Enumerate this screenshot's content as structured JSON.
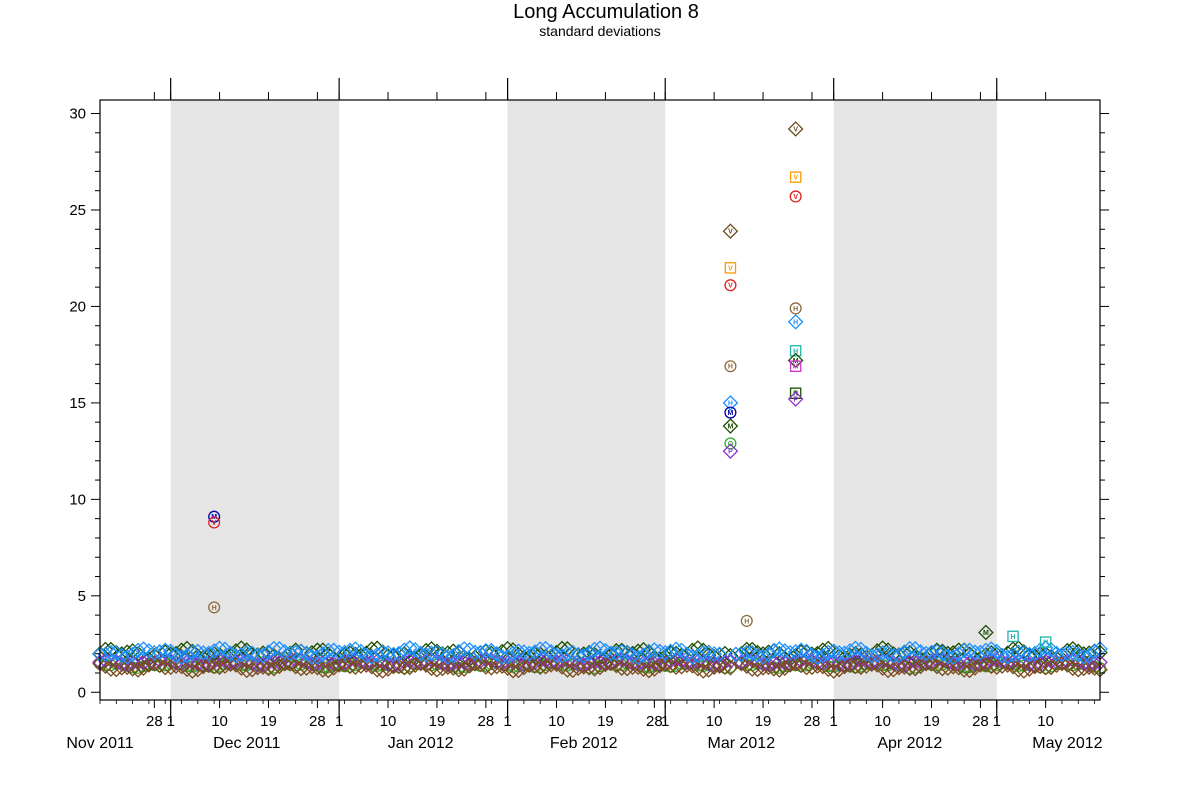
{
  "chart_data": {
    "type": "scatter",
    "title": "Long Accumulation 8",
    "subtitle": "standard deviations",
    "xlabel": "",
    "ylabel": "",
    "x_range": [
      "2011-11-18",
      "2012-05-20"
    ],
    "ylim": [
      -0.4,
      30.7
    ],
    "y_ticks": [
      0,
      5,
      10,
      15,
      20,
      25,
      30
    ],
    "y_minor_step": 1,
    "x_ticks": [
      {
        "date": "2011-11-28",
        "label": "28"
      },
      {
        "date": "2011-12-01",
        "label": "1"
      },
      {
        "date": "2011-12-10",
        "label": "10"
      },
      {
        "date": "2011-12-19",
        "label": "19"
      },
      {
        "date": "2011-12-28",
        "label": "28"
      },
      {
        "date": "2012-01-01",
        "label": "1"
      },
      {
        "date": "2012-01-10",
        "label": "10"
      },
      {
        "date": "2012-01-19",
        "label": "19"
      },
      {
        "date": "2012-01-28",
        "label": "28"
      },
      {
        "date": "2012-02-01",
        "label": "1"
      },
      {
        "date": "2012-02-10",
        "label": "10"
      },
      {
        "date": "2012-02-19",
        "label": "19"
      },
      {
        "date": "2012-02-28",
        "label": "28"
      },
      {
        "date": "2012-03-01",
        "label": "1"
      },
      {
        "date": "2012-03-10",
        "label": "10"
      },
      {
        "date": "2012-03-19",
        "label": "19"
      },
      {
        "date": "2012-03-28",
        "label": "28"
      },
      {
        "date": "2012-04-01",
        "label": "1"
      },
      {
        "date": "2012-04-10",
        "label": "10"
      },
      {
        "date": "2012-04-19",
        "label": "19"
      },
      {
        "date": "2012-04-28",
        "label": "28"
      },
      {
        "date": "2012-05-01",
        "label": "1"
      },
      {
        "date": "2012-05-10",
        "label": "10"
      }
    ],
    "month_labels": [
      {
        "date": "2011-11-18",
        "label": "Nov 2011"
      },
      {
        "date": "2011-12-15",
        "label": "Dec 2011"
      },
      {
        "date": "2012-01-16",
        "label": "Jan 2012"
      },
      {
        "date": "2012-02-15",
        "label": "Feb 2012"
      },
      {
        "date": "2012-03-15",
        "label": "Mar 2012"
      },
      {
        "date": "2012-04-15",
        "label": "Apr 2012"
      },
      {
        "date": "2012-05-14",
        "label": "May 2012"
      }
    ],
    "month_starts": [
      "2011-12-01",
      "2012-01-01",
      "2012-02-01",
      "2012-03-01",
      "2012-04-01",
      "2012-05-01"
    ],
    "shaded_periods": [
      [
        "2011-12-01",
        "2012-01-01"
      ],
      [
        "2012-02-01",
        "2012-03-01"
      ],
      [
        "2012-04-01",
        "2012-05-01"
      ]
    ],
    "grid": false,
    "legend": "none",
    "baseline_series": [
      {
        "marker": "diamond",
        "color": "#1a4d00",
        "level": 2.0,
        "amp": 0.3,
        "segments": [
          [
            "2011-11-18",
            "2012-03-13"
          ],
          [
            "2012-03-15",
            "2012-05-20"
          ]
        ]
      },
      {
        "marker": "circle",
        "color": "#33aa33",
        "level": 1.4,
        "amp": 0.15,
        "segments": [
          [
            "2011-11-18",
            "2012-03-13"
          ],
          [
            "2012-03-15",
            "2012-05-20"
          ]
        ]
      },
      {
        "marker": "diamond",
        "color": "#8833cc",
        "level": 1.55,
        "amp": 0.15,
        "segments": [
          [
            "2011-11-18",
            "2012-03-13"
          ],
          [
            "2012-03-15",
            "2012-05-20"
          ]
        ]
      },
      {
        "marker": "diamond",
        "color": "#7a4a1a",
        "level": 1.3,
        "amp": 0.2,
        "segments": [
          [
            "2011-11-18",
            "2012-03-13"
          ],
          [
            "2012-03-15",
            "2012-05-20"
          ]
        ]
      },
      {
        "marker": "diamond",
        "color": "#1e90ff",
        "level": 2.05,
        "amp": 0.25,
        "segments": [
          [
            "2011-11-18",
            "2012-03-11"
          ],
          [
            "2012-03-14",
            "2012-05-20"
          ]
        ]
      }
    ],
    "points": [
      {
        "date": "2011-12-09",
        "y": 9.1,
        "marker": "circle",
        "color": "#0000aa",
        "letter": "M"
      },
      {
        "date": "2011-12-09",
        "y": 8.8,
        "marker": "circle",
        "color": "#dd2222",
        "letter": "V"
      },
      {
        "date": "2011-12-09",
        "y": 4.4,
        "marker": "circle",
        "color": "#8b6a3e",
        "letter": "H"
      },
      {
        "date": "2012-03-13",
        "y": 23.9,
        "marker": "diamond",
        "color": "#6b4a1e",
        "letter": "V"
      },
      {
        "date": "2012-03-13",
        "y": 22.0,
        "marker": "square",
        "color": "#ff9900",
        "letter": "V"
      },
      {
        "date": "2012-03-13",
        "y": 21.1,
        "marker": "circle",
        "color": "#dd2222",
        "letter": "V"
      },
      {
        "date": "2012-03-13",
        "y": 16.9,
        "marker": "circle",
        "color": "#8b6a3e",
        "letter": "H"
      },
      {
        "date": "2012-03-13",
        "y": 15.0,
        "marker": "diamond",
        "color": "#1e90ff",
        "letter": "H"
      },
      {
        "date": "2012-03-13",
        "y": 14.5,
        "marker": "circle",
        "color": "#0000aa",
        "letter": "M"
      },
      {
        "date": "2012-03-13",
        "y": 13.8,
        "marker": "diamond",
        "color": "#1a4d00",
        "letter": "M"
      },
      {
        "date": "2012-03-13",
        "y": 12.9,
        "marker": "circle",
        "color": "#33aa33",
        "letter": "O"
      },
      {
        "date": "2012-03-13",
        "y": 12.5,
        "marker": "diamond",
        "color": "#8833cc",
        "letter": "P"
      },
      {
        "date": "2012-03-16",
        "y": 3.7,
        "marker": "circle",
        "color": "#8b6a3e",
        "letter": "H"
      },
      {
        "date": "2012-03-25",
        "y": 29.2,
        "marker": "diamond",
        "color": "#6b4a1e",
        "letter": "V"
      },
      {
        "date": "2012-03-25",
        "y": 26.7,
        "marker": "square",
        "color": "#ff9900",
        "letter": "V"
      },
      {
        "date": "2012-03-25",
        "y": 25.7,
        "marker": "circle",
        "color": "#dd2222",
        "letter": "V"
      },
      {
        "date": "2012-03-25",
        "y": 19.9,
        "marker": "circle",
        "color": "#8b6a3e",
        "letter": "H"
      },
      {
        "date": "2012-03-25",
        "y": 19.2,
        "marker": "diamond",
        "color": "#1e90ff",
        "letter": "H"
      },
      {
        "date": "2012-03-25",
        "y": 17.7,
        "marker": "square",
        "color": "#20b2aa",
        "letter": "H"
      },
      {
        "date": "2012-03-25",
        "y": 17.2,
        "marker": "diamond",
        "color": "#1a4d00",
        "letter": "M"
      },
      {
        "date": "2012-03-25",
        "y": 16.9,
        "marker": "square",
        "color": "#cc33cc",
        "letter": "M"
      },
      {
        "date": "2012-03-25",
        "y": 15.5,
        "marker": "square",
        "color": "#1a4d00",
        "letter": "R"
      },
      {
        "date": "2012-03-25",
        "y": 15.2,
        "marker": "diamond",
        "color": "#8833cc",
        "letter": "P"
      },
      {
        "date": "2012-04-29",
        "y": 3.1,
        "marker": "diamond",
        "color": "#1a4d00",
        "letter": "M"
      },
      {
        "date": "2012-05-04",
        "y": 2.9,
        "marker": "square",
        "color": "#20b2aa",
        "letter": "H"
      },
      {
        "date": "2012-05-10",
        "y": 2.6,
        "marker": "square",
        "color": "#20b2aa",
        "letter": "H"
      }
    ]
  }
}
